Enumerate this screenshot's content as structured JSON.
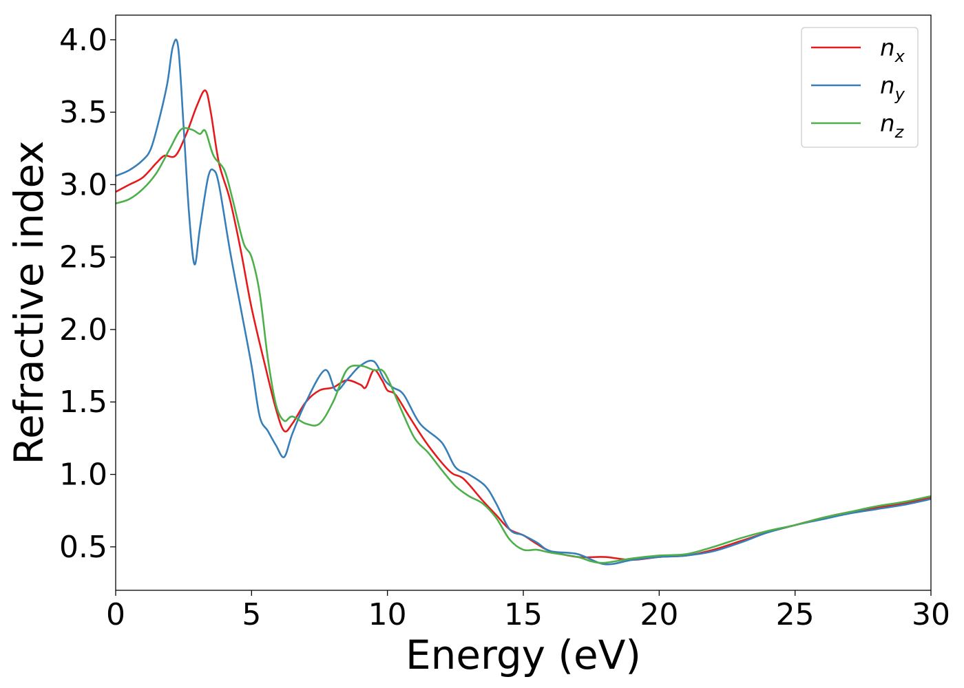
{
  "chart_data": {
    "type": "line",
    "xlabel": "Energy (eV)",
    "ylabel": "Refractive index",
    "xlim": [
      0,
      30
    ],
    "ylim": [
      0.2,
      4.17
    ],
    "xticks": [
      0,
      5,
      10,
      15,
      20,
      25,
      30
    ],
    "xtick_labels": [
      "0",
      "5",
      "10",
      "15",
      "20",
      "25",
      "30"
    ],
    "yticks": [
      0.5,
      1.0,
      1.5,
      2.0,
      2.5,
      3.0,
      3.5,
      4.0
    ],
    "ytick_labels": [
      "0.5",
      "1.0",
      "1.5",
      "2.0",
      "2.5",
      "3.0",
      "3.5",
      "4.0"
    ],
    "grid": false,
    "legend_position": "top-right",
    "series": [
      {
        "name": "n_x",
        "label_base": "n",
        "label_sub": "x",
        "color": "#e41a1c",
        "x": [
          0,
          0.5,
          1,
          1.5,
          1.8,
          2.2,
          2.6,
          3.0,
          3.3,
          3.5,
          3.8,
          4.2,
          4.6,
          5.0,
          5.5,
          5.9,
          6.2,
          6.5,
          7.0,
          7.5,
          8.0,
          8.5,
          9.0,
          9.2,
          9.5,
          9.8,
          10.0,
          10.3,
          10.8,
          11.5,
          12.3,
          12.8,
          13.5,
          14.0,
          14.5,
          15.0,
          15.5,
          16.0,
          17.0,
          18.0,
          19.0,
          20.0,
          21.0,
          22.0,
          23.0,
          24.0,
          25.0,
          26.0,
          27.0,
          28.0,
          29.0,
          30.0
        ],
        "y": [
          2.95,
          3.0,
          3.05,
          3.15,
          3.2,
          3.2,
          3.35,
          3.55,
          3.65,
          3.5,
          3.15,
          2.9,
          2.55,
          2.15,
          1.75,
          1.45,
          1.3,
          1.35,
          1.5,
          1.58,
          1.6,
          1.65,
          1.62,
          1.6,
          1.72,
          1.65,
          1.58,
          1.55,
          1.4,
          1.2,
          1.02,
          0.97,
          0.82,
          0.72,
          0.62,
          0.58,
          0.52,
          0.47,
          0.43,
          0.43,
          0.41,
          0.43,
          0.44,
          0.48,
          0.54,
          0.6,
          0.65,
          0.7,
          0.74,
          0.77,
          0.8,
          0.84
        ]
      },
      {
        "name": "n_y",
        "label_base": "n",
        "label_sub": "y",
        "color": "#377eb8",
        "x": [
          0,
          0.5,
          1,
          1.3,
          1.6,
          1.9,
          2.1,
          2.3,
          2.5,
          2.7,
          2.9,
          3.1,
          3.4,
          3.6,
          3.8,
          4.2,
          4.6,
          5.0,
          5.3,
          5.6,
          5.9,
          6.2,
          6.5,
          7.0,
          7.7,
          8.1,
          8.5,
          9.0,
          9.5,
          9.9,
          10.2,
          10.6,
          11.2,
          12.0,
          12.5,
          13.0,
          13.6,
          14.0,
          14.5,
          15.0,
          15.5,
          16.0,
          17.0,
          18.0,
          19.0,
          20.0,
          21.0,
          22.0,
          23.0,
          24.0,
          25.0,
          26.0,
          27.0,
          28.0,
          29.0,
          30.0
        ],
        "y": [
          3.06,
          3.1,
          3.17,
          3.25,
          3.45,
          3.7,
          3.95,
          3.95,
          3.4,
          2.8,
          2.45,
          2.7,
          3.05,
          3.1,
          3.0,
          2.55,
          2.15,
          1.75,
          1.4,
          1.3,
          1.2,
          1.12,
          1.28,
          1.5,
          1.72,
          1.58,
          1.65,
          1.75,
          1.78,
          1.65,
          1.6,
          1.55,
          1.35,
          1.22,
          1.05,
          1.0,
          0.92,
          0.8,
          0.62,
          0.58,
          0.53,
          0.47,
          0.45,
          0.38,
          0.41,
          0.43,
          0.44,
          0.47,
          0.53,
          0.6,
          0.65,
          0.69,
          0.73,
          0.76,
          0.79,
          0.83
        ]
      },
      {
        "name": "n_z",
        "label_base": "n",
        "label_sub": "z",
        "color": "#4daf4a",
        "x": [
          0,
          0.5,
          1,
          1.5,
          2.0,
          2.4,
          2.8,
          3.1,
          3.3,
          3.6,
          4.0,
          4.3,
          4.7,
          5.0,
          5.3,
          5.6,
          5.9,
          6.2,
          6.5,
          7.0,
          7.5,
          8.0,
          8.5,
          9.0,
          9.5,
          9.9,
          10.5,
          11.0,
          11.5,
          12.0,
          12.5,
          13.0,
          13.5,
          14.0,
          14.5,
          15.0,
          15.5,
          16.0,
          17.0,
          17.5,
          18.0,
          19.0,
          20.0,
          21.0,
          22.0,
          23.0,
          24.0,
          25.0,
          26.0,
          27.0,
          28.0,
          29.0,
          30.0
        ],
        "y": [
          2.87,
          2.9,
          2.97,
          3.08,
          3.25,
          3.38,
          3.38,
          3.35,
          3.37,
          3.2,
          3.1,
          2.9,
          2.6,
          2.5,
          2.25,
          1.8,
          1.48,
          1.37,
          1.4,
          1.35,
          1.35,
          1.5,
          1.72,
          1.75,
          1.72,
          1.7,
          1.45,
          1.25,
          1.15,
          1.03,
          0.92,
          0.85,
          0.8,
          0.7,
          0.55,
          0.48,
          0.48,
          0.46,
          0.43,
          0.4,
          0.39,
          0.42,
          0.44,
          0.45,
          0.5,
          0.56,
          0.61,
          0.65,
          0.7,
          0.74,
          0.78,
          0.81,
          0.85
        ]
      }
    ]
  }
}
